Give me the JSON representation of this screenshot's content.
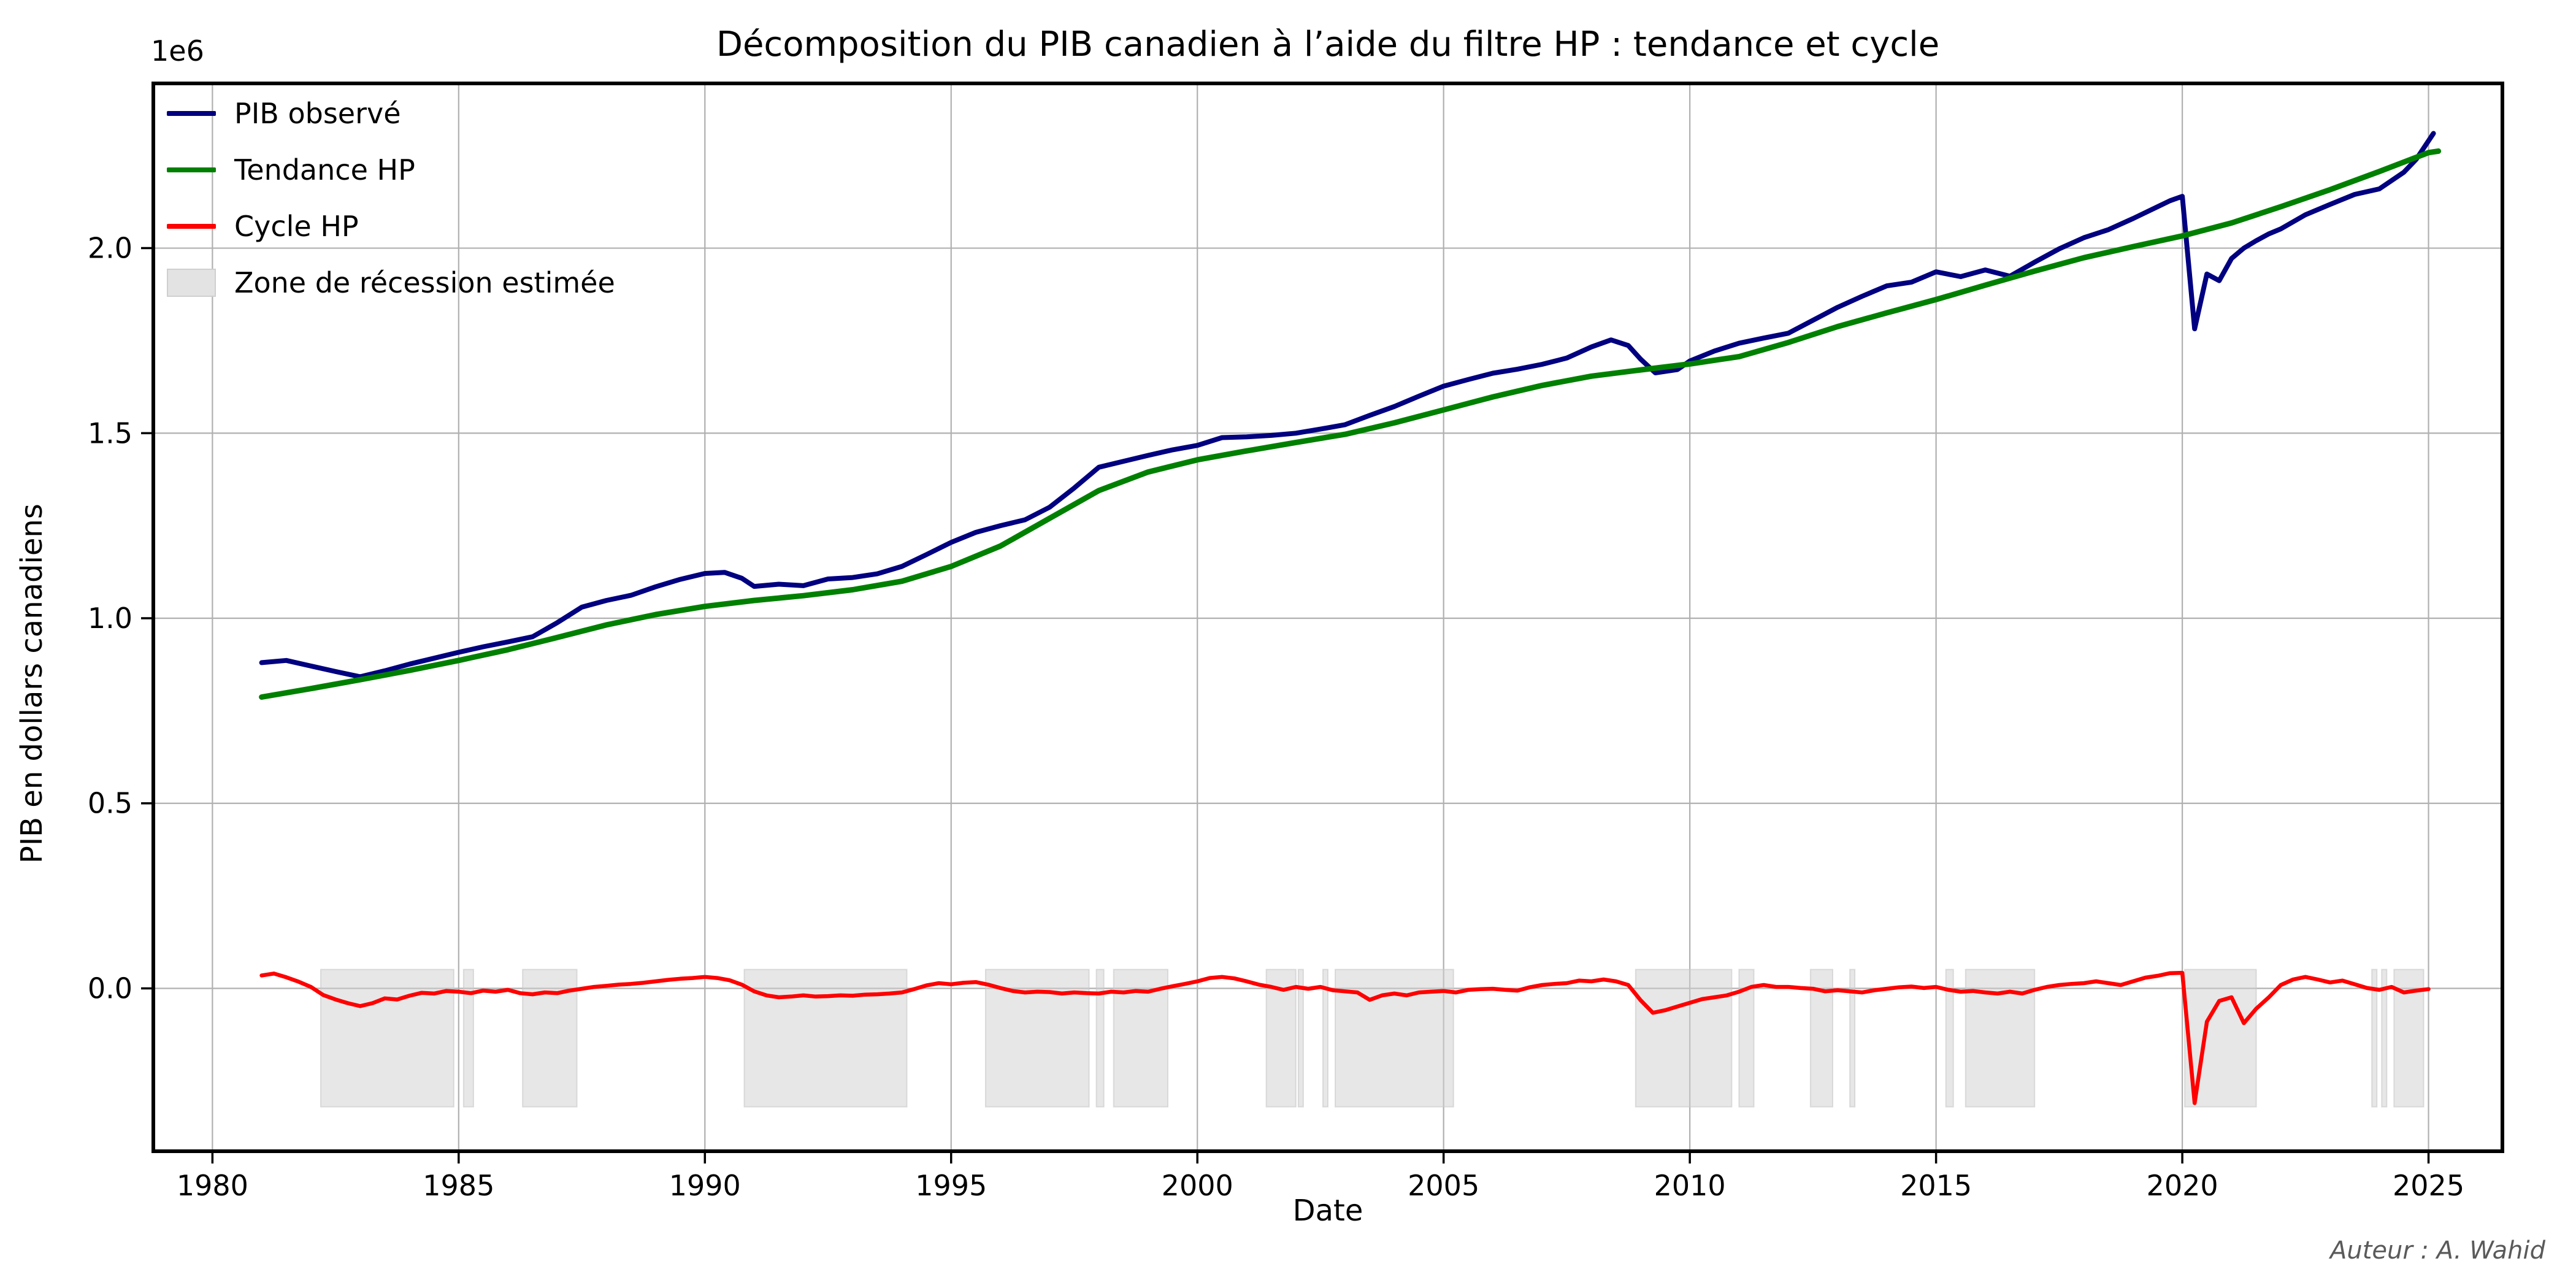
{
  "figure": {
    "title": "Décomposition du PIB canadien à l’aide du filtre HP : tendance et cycle",
    "author_note": "Auteur : A. Wahid"
  },
  "chart_data": {
    "type": "line",
    "title": "Décomposition du PIB canadien à l’aide du filtre HP : tendance et cycle",
    "xlabel": "Date",
    "ylabel": "PIB en dollars canadiens",
    "y_offset_label": "1e6",
    "unit": "valeurs en 1e6 dollars canadiens",
    "xlim": [
      1978.8,
      2026.5
    ],
    "ylim": [
      -0.44,
      2.445
    ],
    "xticks": [
      1980,
      1985,
      1990,
      1995,
      2000,
      2005,
      2010,
      2015,
      2020,
      2025
    ],
    "yticks": [
      0.0,
      0.5,
      1.0,
      1.5,
      2.0
    ],
    "ytick_labels": [
      "0.0",
      "0.5",
      "1.0",
      "1.5",
      "2.0"
    ],
    "grid": true,
    "grid_color": "#b0b0b0",
    "axes_color": "#000000",
    "legend": {
      "position": "upper-left",
      "frame": false,
      "entries": [
        {
          "label": "PIB observé",
          "color": "#000080",
          "sample": "line"
        },
        {
          "label": "Tendance HP",
          "color": "#008000",
          "sample": "line"
        },
        {
          "label": "Cycle HP",
          "color": "#ff0000",
          "sample": "line"
        },
        {
          "label": "Zone de récession estimée",
          "color": "#e3e3e3",
          "sample": "patch"
        }
      ]
    },
    "series": [
      {
        "name": "PIB observé",
        "color": "#000080",
        "width": 8,
        "x": [
          1981,
          1981.5,
          1982,
          1982.5,
          1983,
          1983.5,
          1984,
          1984.5,
          1985,
          1985.5,
          1986,
          1986.5,
          1987,
          1987.5,
          1988,
          1988.5,
          1989,
          1989.5,
          1990,
          1990.4,
          1990.75,
          1991,
          1991.5,
          1992,
          1992.5,
          1993,
          1993.5,
          1994,
          1994.5,
          1995,
          1995.5,
          1996,
          1996.5,
          1997,
          1997.5,
          1998,
          1998.5,
          1999,
          1999.5,
          2000,
          2000.5,
          2001,
          2001.5,
          2002,
          2002.5,
          2003,
          2003.5,
          2004,
          2004.5,
          2005,
          2005.5,
          2006,
          2006.5,
          2007,
          2007.5,
          2008,
          2008.4,
          2008.75,
          2009,
          2009.3,
          2009.75,
          2010,
          2010.5,
          2011,
          2011.5,
          2012,
          2012.5,
          2013,
          2013.5,
          2014,
          2014.5,
          2015,
          2015.5,
          2016,
          2016.5,
          2017,
          2017.5,
          2018,
          2018.5,
          2019,
          2019.5,
          2019.75,
          2020,
          2020.25,
          2020.5,
          2020.75,
          2021,
          2021.25,
          2021.5,
          2021.75,
          2022,
          2022.5,
          2023,
          2023.5,
          2024,
          2024.5,
          2024.75,
          2025.1
        ],
        "values": [
          0.88,
          0.886,
          0.871,
          0.856,
          0.842,
          0.858,
          0.876,
          0.892,
          0.908,
          0.923,
          0.936,
          0.95,
          0.988,
          1.03,
          1.048,
          1.062,
          1.085,
          1.105,
          1.121,
          1.124,
          1.108,
          1.086,
          1.092,
          1.088,
          1.106,
          1.11,
          1.12,
          1.14,
          1.172,
          1.205,
          1.232,
          1.25,
          1.266,
          1.3,
          1.352,
          1.408,
          1.424,
          1.44,
          1.455,
          1.467,
          1.488,
          1.49,
          1.494,
          1.5,
          1.511,
          1.523,
          1.548,
          1.572,
          1.6,
          1.627,
          1.645,
          1.662,
          1.673,
          1.686,
          1.703,
          1.733,
          1.752,
          1.737,
          1.7,
          1.663,
          1.672,
          1.695,
          1.722,
          1.743,
          1.757,
          1.77,
          1.805,
          1.84,
          1.87,
          1.898,
          1.908,
          1.936,
          1.923,
          1.941,
          1.924,
          1.962,
          1.998,
          2.028,
          2.05,
          2.08,
          2.112,
          2.128,
          2.14,
          1.782,
          1.93,
          1.912,
          1.972,
          2.0,
          2.02,
          2.038,
          2.052,
          2.09,
          2.118,
          2.145,
          2.16,
          2.205,
          2.24,
          2.31
        ]
      },
      {
        "name": "Tendance HP",
        "color": "#008000",
        "width": 9,
        "x": [
          1981,
          1982,
          1983,
          1984,
          1985,
          1986,
          1987,
          1988,
          1989,
          1990,
          1991,
          1992,
          1993,
          1994,
          1995,
          1996,
          1997,
          1998,
          1999,
          2000,
          2001,
          2002,
          2003,
          2004,
          2005,
          2006,
          2007,
          2008,
          2009,
          2010,
          2011,
          2012,
          2013,
          2014,
          2015,
          2016,
          2017,
          2018,
          2019,
          2020,
          2021,
          2022,
          2023,
          2024,
          2025,
          2025.2
        ],
        "values": [
          0.787,
          0.81,
          0.834,
          0.859,
          0.886,
          0.915,
          0.948,
          0.982,
          1.01,
          1.032,
          1.048,
          1.061,
          1.077,
          1.1,
          1.14,
          1.195,
          1.27,
          1.345,
          1.395,
          1.428,
          1.452,
          1.475,
          1.497,
          1.528,
          1.563,
          1.598,
          1.629,
          1.654,
          1.671,
          1.687,
          1.707,
          1.745,
          1.788,
          1.825,
          1.861,
          1.9,
          1.938,
          1.974,
          2.004,
          2.033,
          2.068,
          2.112,
          2.158,
          2.207,
          2.258,
          2.262
        ]
      },
      {
        "name": "Cycle HP",
        "color": "#ff0000",
        "width": 6.5,
        "x_start": 1981,
        "x_step": 0.25,
        "values": [
          0.035,
          0.04,
          0.03,
          0.018,
          0.004,
          -0.018,
          -0.03,
          -0.04,
          -0.048,
          -0.04,
          -0.027,
          -0.03,
          -0.02,
          -0.012,
          -0.014,
          -0.007,
          -0.009,
          -0.013,
          -0.006,
          -0.009,
          -0.004,
          -0.013,
          -0.016,
          -0.011,
          -0.013,
          -0.006,
          -0.001,
          0.004,
          0.007,
          0.01,
          0.012,
          0.015,
          0.019,
          0.023,
          0.026,
          0.028,
          0.031,
          0.028,
          0.022,
          0.01,
          -0.008,
          -0.019,
          -0.024,
          -0.022,
          -0.019,
          -0.022,
          -0.021,
          -0.019,
          -0.02,
          -0.017,
          -0.016,
          -0.014,
          -0.011,
          -0.002,
          0.008,
          0.014,
          0.011,
          0.015,
          0.017,
          0.01,
          0.001,
          -0.007,
          -0.011,
          -0.009,
          -0.01,
          -0.014,
          -0.011,
          -0.013,
          -0.014,
          -0.009,
          -0.011,
          -0.007,
          -0.009,
          -0.001,
          0.006,
          0.012,
          0.019,
          0.028,
          0.031,
          0.027,
          0.019,
          0.01,
          0.004,
          -0.004,
          0.004,
          -0.001,
          0.004,
          -0.005,
          -0.008,
          -0.011,
          -0.031,
          -0.019,
          -0.014,
          -0.019,
          -0.011,
          -0.009,
          -0.007,
          -0.011,
          -0.004,
          -0.002,
          -0.001,
          -0.004,
          -0.006,
          0.003,
          0.009,
          0.012,
          0.014,
          0.021,
          0.019,
          0.024,
          0.019,
          0.009,
          -0.032,
          -0.066,
          -0.059,
          -0.049,
          -0.039,
          -0.029,
          -0.024,
          -0.019,
          -0.009,
          0.004,
          0.009,
          0.004,
          0.004,
          0.001,
          -0.001,
          -0.008,
          -0.005,
          -0.008,
          -0.011,
          -0.005,
          -0.001,
          0.003,
          0.005,
          0.001,
          0.004,
          -0.004,
          -0.009,
          -0.007,
          -0.011,
          -0.014,
          -0.009,
          -0.014,
          -0.004,
          0.004,
          0.009,
          0.012,
          0.014,
          0.019,
          0.014,
          0.009,
          0.019,
          0.029,
          0.034,
          0.041,
          0.042,
          -0.31,
          -0.09,
          -0.034,
          -0.024,
          -0.094,
          -0.055,
          -0.025,
          0.009,
          0.024,
          0.031,
          0.024,
          0.016,
          0.021,
          0.011,
          0.001,
          -0.004,
          0.004,
          -0.011,
          -0.006,
          -0.002
        ]
      }
    ],
    "recession_bands": {
      "label": "Zone de récession estimée",
      "fill": "#cfcfcf",
      "fill_opacity": 0.5,
      "edge": "#c8c8c8",
      "y_range": [
        -0.32,
        0.051
      ],
      "intervals": [
        [
          1982.2,
          1984.9
        ],
        [
          1985.1,
          1985.3
        ],
        [
          1986.3,
          1987.4
        ],
        [
          1990.8,
          1994.1
        ],
        [
          1995.7,
          1997.8
        ],
        [
          1997.95,
          1998.1
        ],
        [
          1998.3,
          1999.4
        ],
        [
          2001.4,
          2002.0
        ],
        [
          2002.05,
          2002.15
        ],
        [
          2002.55,
          2002.65
        ],
        [
          2002.8,
          2005.2
        ],
        [
          2008.9,
          2010.85
        ],
        [
          2011.0,
          2011.3
        ],
        [
          2012.45,
          2012.9
        ],
        [
          2013.25,
          2013.35
        ],
        [
          2015.2,
          2015.35
        ],
        [
          2015.6,
          2017.0
        ],
        [
          2020.05,
          2021.5
        ],
        [
          2023.85,
          2023.95
        ],
        [
          2024.05,
          2024.15
        ],
        [
          2024.3,
          2024.9
        ]
      ]
    }
  }
}
